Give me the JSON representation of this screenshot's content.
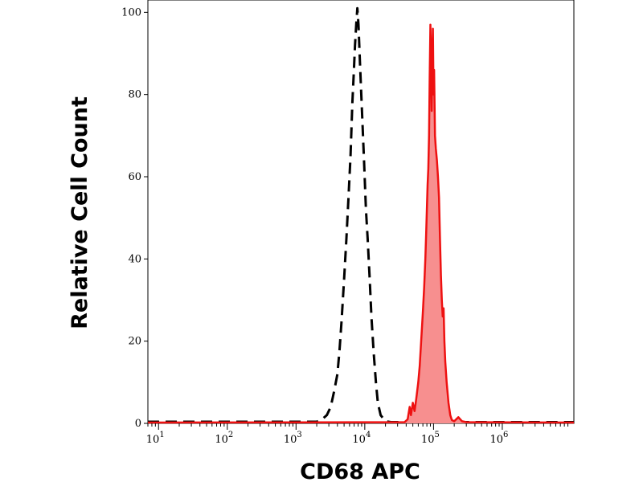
{
  "chart_data": {
    "type": "area",
    "title": "",
    "xlabel": "CD68 APC",
    "ylabel": "Relative Cell Count",
    "xscale": "log",
    "xlim": [
      7,
      11000000
    ],
    "ylim": [
      0,
      103
    ],
    "y_ticks": [
      0,
      20,
      40,
      60,
      80,
      100
    ],
    "x_ticks": [
      {
        "value": 10,
        "base": "10",
        "exp": "1"
      },
      {
        "value": 100,
        "base": "10",
        "exp": "2"
      },
      {
        "value": 1000,
        "base": "10",
        "exp": "3"
      },
      {
        "value": 10000,
        "base": "10",
        "exp": "4"
      },
      {
        "value": 100000,
        "base": "10",
        "exp": "5"
      },
      {
        "value": 1000000,
        "base": "10",
        "exp": "6"
      }
    ],
    "grid": false,
    "series": [
      {
        "style": "dashed",
        "color": "#000000",
        "fill": "none",
        "points": [
          [
            7,
            0.4
          ],
          [
            2000,
            0.4
          ],
          [
            2400,
            1
          ],
          [
            2800,
            2
          ],
          [
            3200,
            4
          ],
          [
            3600,
            8
          ],
          [
            4000,
            12
          ],
          [
            4300,
            18
          ],
          [
            4600,
            25
          ],
          [
            5000,
            35
          ],
          [
            5400,
            45
          ],
          [
            5800,
            55
          ],
          [
            6200,
            65
          ],
          [
            6600,
            78
          ],
          [
            6900,
            85
          ],
          [
            7200,
            92
          ],
          [
            7500,
            97
          ],
          [
            7800,
            101
          ],
          [
            8100,
            97
          ],
          [
            8500,
            88
          ],
          [
            8900,
            80
          ],
          [
            9300,
            72
          ],
          [
            9800,
            63
          ],
          [
            10400,
            52
          ],
          [
            11000,
            45
          ],
          [
            11800,
            35
          ],
          [
            12500,
            26
          ],
          [
            13500,
            17
          ],
          [
            14500,
            10
          ],
          [
            15500,
            5
          ],
          [
            17000,
            2
          ],
          [
            20000,
            0.5
          ],
          [
            24000,
            0.3
          ],
          [
            11000000,
            0.3
          ]
        ]
      },
      {
        "style": "solid",
        "color": "#ee1111",
        "fill": "#f78f8f",
        "points": [
          [
            7,
            0.2
          ],
          [
            38000,
            0.3
          ],
          [
            42000,
            1
          ],
          [
            45000,
            4
          ],
          [
            47000,
            2
          ],
          [
            50000,
            5
          ],
          [
            53000,
            3
          ],
          [
            56000,
            6
          ],
          [
            60000,
            10
          ],
          [
            63000,
            14
          ],
          [
            66000,
            20
          ],
          [
            70000,
            27
          ],
          [
            73000,
            33
          ],
          [
            76000,
            40
          ],
          [
            78000,
            46
          ],
          [
            80000,
            52
          ],
          [
            82000,
            58
          ],
          [
            84000,
            62
          ],
          [
            86000,
            70
          ],
          [
            88000,
            84
          ],
          [
            90000,
            97
          ],
          [
            92000,
            88
          ],
          [
            94000,
            76
          ],
          [
            96000,
            90
          ],
          [
            98000,
            96
          ],
          [
            100000,
            80
          ],
          [
            102000,
            86
          ],
          [
            105000,
            70
          ],
          [
            108000,
            67
          ],
          [
            112000,
            64
          ],
          [
            116000,
            60
          ],
          [
            120000,
            55
          ],
          [
            124000,
            45
          ],
          [
            128000,
            36
          ],
          [
            132000,
            30
          ],
          [
            136000,
            26
          ],
          [
            140000,
            28
          ],
          [
            144000,
            20
          ],
          [
            148000,
            15
          ],
          [
            155000,
            10
          ],
          [
            165000,
            5
          ],
          [
            175000,
            2
          ],
          [
            185000,
            0.8
          ],
          [
            200000,
            0.5
          ],
          [
            230000,
            1.5
          ],
          [
            260000,
            0.5
          ],
          [
            300000,
            0.3
          ],
          [
            11000000,
            0.2
          ]
        ]
      }
    ]
  }
}
